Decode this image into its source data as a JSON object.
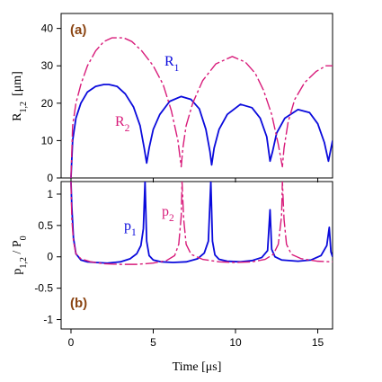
{
  "chart_data": [
    {
      "type": "line",
      "panel_label": "(a)",
      "ylabel": "R",
      "ylabel_sub": "1,2",
      "ylabel_unit": "[μm]",
      "xlim": [
        -0.6,
        15.9
      ],
      "ylim": [
        0,
        44
      ],
      "yticks": [
        0,
        10,
        20,
        30,
        40
      ],
      "series": [
        {
          "name": "R",
          "name_sub": "1",
          "color": "#0a0adc",
          "style": "solid",
          "x": [
            0.0,
            0.1,
            0.3,
            0.6,
            1.0,
            1.5,
            2.0,
            2.3,
            2.8,
            3.3,
            3.8,
            4.2,
            4.45,
            4.6,
            4.75,
            5.0,
            5.4,
            6.0,
            6.7,
            7.3,
            7.8,
            8.2,
            8.45,
            8.55,
            8.7,
            9.0,
            9.5,
            10.3,
            11.0,
            11.5,
            11.9,
            12.1,
            12.25,
            12.5,
            13.0,
            13.8,
            14.5,
            15.0,
            15.4,
            15.65,
            15.9
          ],
          "y": [
            0,
            10,
            16,
            20,
            23,
            24.5,
            25,
            25,
            24.5,
            22.5,
            19,
            14,
            8,
            4,
            8,
            13,
            17,
            20.5,
            21.8,
            21,
            18.5,
            13,
            7,
            3.5,
            8,
            13,
            17,
            19.7,
            18.8,
            16,
            11,
            4.5,
            7,
            12,
            16,
            18.3,
            17.5,
            14.5,
            9.5,
            4.5,
            10
          ]
        },
        {
          "name": "R",
          "name_sub": "2",
          "color": "#d81b7a",
          "style": "dashed",
          "x": [
            0.0,
            0.1,
            0.3,
            0.6,
            1.0,
            1.5,
            2.0,
            2.5,
            3.2,
            3.7,
            4.3,
            5.0,
            5.6,
            6.1,
            6.5,
            6.7,
            6.8,
            7.0,
            7.4,
            8.0,
            8.8,
            9.8,
            10.6,
            11.2,
            11.7,
            12.2,
            12.6,
            12.85,
            12.95,
            13.2,
            13.6,
            14.2,
            14.9,
            15.5,
            15.9
          ],
          "y": [
            0,
            14,
            20,
            25,
            30,
            34,
            36.5,
            37.5,
            37.5,
            36.5,
            34,
            30,
            25,
            18,
            10,
            3,
            8,
            14,
            20,
            26,
            30.5,
            32.5,
            31,
            28,
            23.5,
            17,
            9,
            3,
            8,
            15,
            21,
            25.5,
            28.5,
            30,
            30
          ]
        }
      ]
    },
    {
      "type": "line",
      "panel_label": "(b)",
      "ylabel": "p",
      "ylabel_sub": "1,2",
      "ylabel_mid": " / P",
      "ylabel_sub2": "0",
      "xlabel": "Time  [μs]",
      "xlim": [
        -0.6,
        15.9
      ],
      "ylim": [
        -1.15,
        1.2
      ],
      "yticks": [
        -1,
        -0.5,
        0,
        0.5,
        1
      ],
      "ytick_labels": [
        "-1",
        "-0.5",
        "0",
        "0.5",
        "1"
      ],
      "xticks": [
        0,
        5,
        10,
        15
      ],
      "series": [
        {
          "name": "p",
          "name_sub": "1",
          "color": "#0a0adc",
          "style": "solid",
          "x": [
            0.0,
            0.05,
            0.15,
            0.3,
            0.6,
            1.0,
            1.5,
            2.2,
            3.0,
            3.6,
            4.0,
            4.25,
            4.4,
            4.5,
            4.6,
            4.75,
            5.0,
            5.5,
            6.2,
            7.0,
            7.7,
            8.1,
            8.35,
            8.5,
            8.6,
            8.75,
            9.0,
            9.5,
            10.3,
            11.0,
            11.6,
            11.95,
            12.1,
            12.2,
            12.4,
            12.8,
            13.8,
            14.6,
            15.2,
            15.55,
            15.7,
            15.8,
            15.9
          ],
          "y": [
            1.2,
            0.8,
            0.3,
            0.05,
            -0.05,
            -0.08,
            -0.09,
            -0.1,
            -0.08,
            -0.03,
            0.05,
            0.18,
            0.45,
            1.2,
            0.25,
            0.02,
            -0.05,
            -0.08,
            -0.09,
            -0.08,
            -0.03,
            0.06,
            0.25,
            1.2,
            0.25,
            0.03,
            -0.04,
            -0.07,
            -0.08,
            -0.06,
            -0.01,
            0.1,
            0.75,
            0.12,
            0.0,
            -0.05,
            -0.07,
            -0.05,
            0.02,
            0.18,
            0.47,
            0.08,
            0.0
          ]
        },
        {
          "name": "p",
          "name_sub": "2",
          "color": "#d81b7a",
          "style": "dashed",
          "x": [
            0.0,
            0.05,
            0.15,
            0.3,
            0.6,
            1.2,
            2.0,
            3.0,
            4.0,
            5.0,
            5.8,
            6.3,
            6.55,
            6.7,
            6.75,
            6.85,
            7.0,
            7.3,
            8.0,
            9.0,
            10.0,
            11.0,
            11.8,
            12.3,
            12.6,
            12.8,
            12.85,
            12.95,
            13.1,
            13.4,
            14.0,
            15.0,
            15.9
          ],
          "y": [
            1.2,
            0.6,
            0.25,
            0.05,
            -0.03,
            -0.08,
            -0.11,
            -0.12,
            -0.12,
            -0.1,
            -0.06,
            0.02,
            0.2,
            0.65,
            1.2,
            0.6,
            0.2,
            0.04,
            -0.04,
            -0.08,
            -0.09,
            -0.08,
            -0.04,
            0.04,
            0.2,
            0.65,
            1.2,
            0.6,
            0.2,
            0.04,
            -0.03,
            -0.07,
            -0.08
          ]
        }
      ]
    }
  ]
}
